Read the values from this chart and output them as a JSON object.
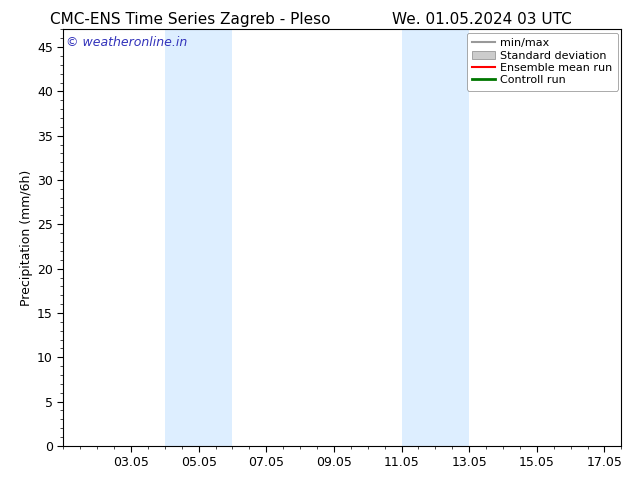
{
  "title": "CMC-ENS Time Series Zagreb - Pleso     We. 01.05.2024 03 UTC",
  "title_left": "CMC-ENS Time Series Zagreb - Pleso",
  "title_right": "We. 01.05.2024 03 UTC",
  "ylabel": "Precipitation (mm/6h)",
  "ylim": [
    0,
    47
  ],
  "yticks": [
    0,
    5,
    10,
    15,
    20,
    25,
    30,
    35,
    40,
    45
  ],
  "xlim": [
    1.0,
    17.5
  ],
  "xtick_labels": [
    "03.05",
    "05.05",
    "07.05",
    "09.05",
    "11.05",
    "13.05",
    "15.05",
    "17.05"
  ],
  "xtick_positions": [
    3,
    5,
    7,
    9,
    11,
    13,
    15,
    17
  ],
  "shaded_bands": [
    {
      "x_start": 4.0,
      "x_end": 6.0,
      "color": "#ddeeff"
    },
    {
      "x_start": 11.0,
      "x_end": 13.0,
      "color": "#ddeeff"
    }
  ],
  "background_color": "#ffffff",
  "watermark_text": "© weatheronline.in",
  "watermark_color": "#3333bb",
  "legend_entries": [
    {
      "label": "min/max",
      "color": "#999999",
      "lw": 1.5,
      "type": "line"
    },
    {
      "label": "Standard deviation",
      "color": "#cccccc",
      "lw": 8,
      "type": "patch"
    },
    {
      "label": "Ensemble mean run",
      "color": "#ff0000",
      "lw": 1.5,
      "type": "line"
    },
    {
      "label": "Controll run",
      "color": "#007700",
      "lw": 2.0,
      "type": "line"
    }
  ],
  "title_fontsize": 11,
  "ylabel_fontsize": 9,
  "tick_fontsize": 9,
  "legend_fontsize": 8,
  "watermark_fontsize": 9
}
